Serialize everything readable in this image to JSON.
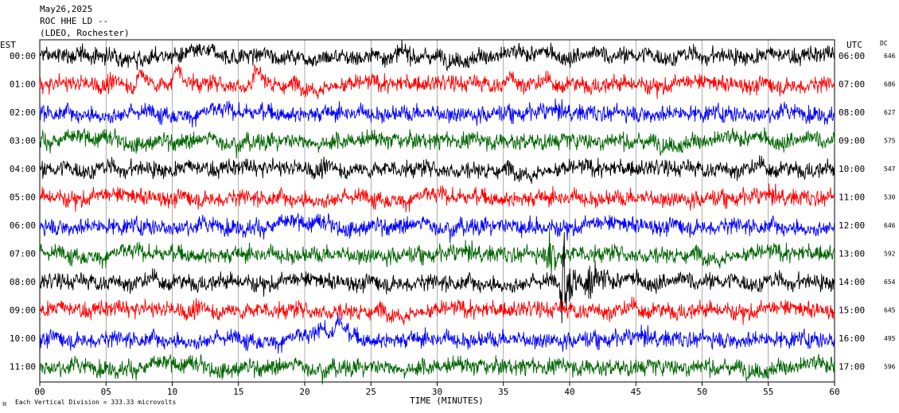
{
  "header": {
    "date": "May26,2025",
    "station": "ROC HHE LD --",
    "network": "(LDEO, Rochester)"
  },
  "chart_data": {
    "type": "line",
    "title": "",
    "xlabel": "TIME (MINUTES)",
    "left_axis_label": "EST",
    "right_axis_label": "UTC",
    "dc_label": "DC",
    "x_ticks": [
      "00",
      "05",
      "10",
      "15",
      "20",
      "25",
      "30",
      "35",
      "40",
      "45",
      "50",
      "55",
      "60"
    ],
    "xlim": [
      0,
      60
    ],
    "grid": true,
    "scale_note": "Each Vertical Division =  333.33 microvolts",
    "rows": [
      {
        "est": "00:00",
        "utc": "06:00",
        "dc": "646",
        "color": "#000000"
      },
      {
        "est": "01:00",
        "utc": "07:00",
        "dc": "686",
        "color": "#ff0000"
      },
      {
        "est": "02:00",
        "utc": "08:00",
        "dc": "627",
        "color": "#0000ff"
      },
      {
        "est": "03:00",
        "utc": "09:00",
        "dc": "575",
        "color": "#006400"
      },
      {
        "est": "04:00",
        "utc": "10:00",
        "dc": "547",
        "color": "#000000"
      },
      {
        "est": "05:00",
        "utc": "11:00",
        "dc": "530",
        "color": "#ff0000"
      },
      {
        "est": "06:00",
        "utc": "12:00",
        "dc": "646",
        "color": "#0000ff"
      },
      {
        "est": "07:00",
        "utc": "13:00",
        "dc": "592",
        "color": "#006400"
      },
      {
        "est": "08:00",
        "utc": "14:00",
        "dc": "654",
        "color": "#000000"
      },
      {
        "est": "09:00",
        "utc": "15:00",
        "dc": "645",
        "color": "#ff0000"
      },
      {
        "est": "10:00",
        "utc": "16:00",
        "dc": "495",
        "color": "#0000ff"
      },
      {
        "est": "11:00",
        "utc": "17:00",
        "dc": "596",
        "color": "#006400"
      }
    ],
    "events": [
      {
        "row": 1,
        "minute": 7.5,
        "amp": 1.1
      },
      {
        "row": 1,
        "minute": 10.3,
        "amp": 1.5
      },
      {
        "row": 1,
        "minute": 16.3,
        "amp": 1.6
      },
      {
        "row": 1,
        "minute": 35.5,
        "amp": 0.8
      },
      {
        "row": 6,
        "minute": 36.3,
        "amp": 1.3
      },
      {
        "row": 7,
        "minute": 38.5,
        "amp": 3.0
      },
      {
        "row": 8,
        "minute": 39.5,
        "amp": 4.5
      },
      {
        "row": 8,
        "minute": 41.5,
        "amp": 3.0
      },
      {
        "row": 10,
        "minute": 21.2,
        "amp": 1.2
      },
      {
        "row": 10,
        "minute": 22.5,
        "amp": 1.8
      }
    ]
  }
}
